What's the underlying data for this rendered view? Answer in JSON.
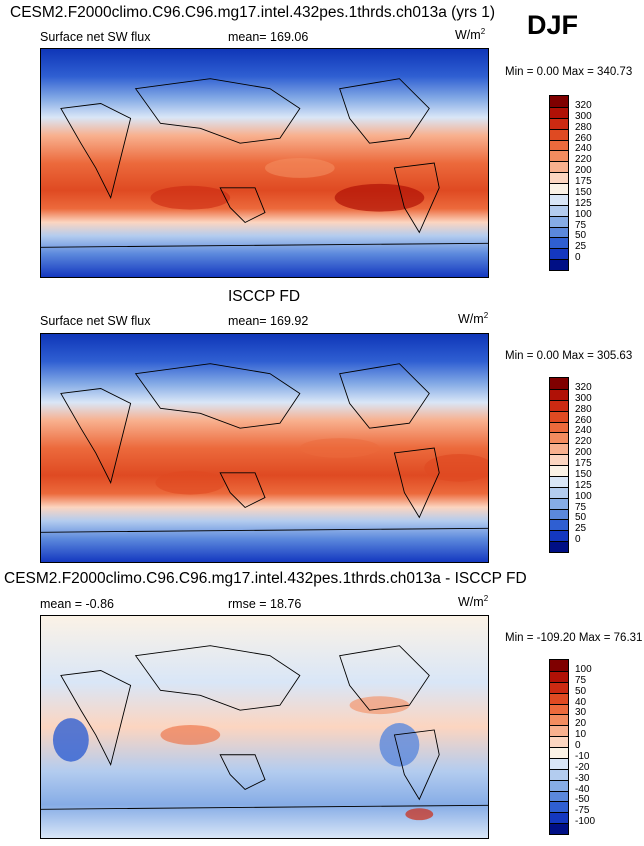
{
  "season": "DJF",
  "panels": [
    {
      "title": "CESM2.F2000climo.C96.C96.mg17.intel.432pes.1thrds.ch013a (yrs 1)",
      "left_label": "Surface net SW flux",
      "center_label": "mean= 169.06",
      "units": "W/m",
      "units_sup": "2",
      "stats": "Min =   0.00 Max = 340.73"
    },
    {
      "title": "ISCCP FD",
      "left_label": "Surface net SW flux",
      "center_label": "mean= 169.92",
      "units": "W/m",
      "units_sup": "2",
      "stats": "Min =   0.00 Max = 305.63"
    },
    {
      "title": "CESM2.F2000climo.C96.C96.mg17.intel.432pes.1thrds.ch013a - ISCCP FD",
      "left_label": "mean =  -0.86",
      "center_label": "rmse =  18.76",
      "units": "W/m",
      "units_sup": "2",
      "stats": "Min = -109.20 Max =  76.31"
    }
  ],
  "chart_data": [
    {
      "type": "heatmap",
      "title": "CESM2.F2000climo.C96.C96.mg17.intel.432pes.1thrds.ch013a (yrs 1)",
      "variable": "Surface net SW flux",
      "units": "W/m2",
      "season": "DJF",
      "mean": 169.06,
      "min": 0.0,
      "max": 340.73,
      "colorbar_levels": [
        "320",
        "300",
        "280",
        "260",
        "240",
        "220",
        "200",
        "175",
        "150",
        "125",
        "100",
        "75",
        "50",
        "25",
        "0"
      ],
      "colorbar_colors": [
        "#7f0000",
        "#b01106",
        "#cc2a12",
        "#df4a22",
        "#ec6a3c",
        "#f38c5f",
        "#f8b08e",
        "#fcd5c0",
        "#fbf2e6",
        "#d9e6f7",
        "#b3ccef",
        "#86ace6",
        "#5b88dc",
        "#2f5fd2",
        "#1438c0",
        "#000f85"
      ]
    },
    {
      "type": "heatmap",
      "title": "ISCCP FD",
      "variable": "Surface net SW flux",
      "units": "W/m2",
      "season": "DJF",
      "mean": 169.92,
      "min": 0.0,
      "max": 305.63,
      "colorbar_levels": [
        "320",
        "300",
        "280",
        "260",
        "240",
        "220",
        "200",
        "175",
        "150",
        "125",
        "100",
        "75",
        "50",
        "25",
        "0"
      ],
      "colorbar_colors": [
        "#7f0000",
        "#b01106",
        "#cc2a12",
        "#df4a22",
        "#ec6a3c",
        "#f38c5f",
        "#f8b08e",
        "#fcd5c0",
        "#fbf2e6",
        "#d9e6f7",
        "#b3ccef",
        "#86ace6",
        "#5b88dc",
        "#2f5fd2",
        "#1438c0",
        "#000f85"
      ]
    },
    {
      "type": "heatmap",
      "title": "CESM2.F2000climo.C96.C96.mg17.intel.432pes.1thrds.ch013a - ISCCP FD",
      "units": "W/m2",
      "season": "DJF",
      "mean": -0.86,
      "rmse": 18.76,
      "min": -109.2,
      "max": 76.31,
      "colorbar_levels": [
        "100",
        "75",
        "50",
        "40",
        "30",
        "20",
        "10",
        "0",
        "-10",
        "-20",
        "-30",
        "-40",
        "-50",
        "-75",
        "-100"
      ],
      "colorbar_colors": [
        "#7f0000",
        "#b01106",
        "#cc2a12",
        "#df4a22",
        "#ec6a3c",
        "#f38c5f",
        "#f8b08e",
        "#fcd5c0",
        "#fbf2e6",
        "#d9e6f7",
        "#b3ccef",
        "#86ace6",
        "#5b88dc",
        "#2f5fd2",
        "#1438c0",
        "#000f85"
      ]
    }
  ]
}
